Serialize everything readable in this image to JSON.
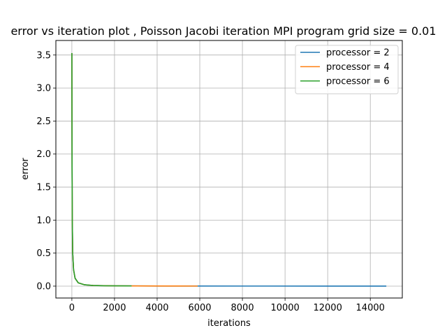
{
  "chart_data": {
    "type": "line",
    "title": "error vs iteration plot  , Poisson Jacobi iteration MPI program grid size = 0.01",
    "xlabel": "iterations",
    "ylabel": "error",
    "xlim": [
      -750,
      15500
    ],
    "ylim": [
      -0.18,
      3.72
    ],
    "xticks": [
      0,
      2000,
      4000,
      6000,
      8000,
      10000,
      12000,
      14000
    ],
    "xtick_labels": [
      "0",
      "2000",
      "4000",
      "6000",
      "8000",
      "10000",
      "12000",
      "14000"
    ],
    "yticks": [
      0.0,
      0.5,
      1.0,
      1.5,
      2.0,
      2.5,
      3.0,
      3.5
    ],
    "ytick_labels": [
      "0.0",
      "0.5",
      "1.0",
      "1.5",
      "2.0",
      "2.5",
      "3.0",
      "3.5"
    ],
    "grid": true,
    "legend_position": "top-right",
    "series": [
      {
        "name": "processor = 2",
        "color": "#1f77b4",
        "x": [
          0,
          5,
          10,
          20,
          40,
          80,
          150,
          300,
          600,
          1000,
          2000,
          4000,
          8000,
          12000,
          14750
        ],
        "y": [
          3.53,
          2.6,
          1.8,
          1.0,
          0.5,
          0.25,
          0.12,
          0.05,
          0.02,
          0.01,
          0.004,
          0.002,
          0.001,
          0.0005,
          0.0003
        ]
      },
      {
        "name": "processor = 4",
        "color": "#ff7f0e",
        "x": [
          0,
          5,
          10,
          20,
          40,
          80,
          150,
          300,
          600,
          1000,
          2000,
          3000,
          4500,
          5900
        ],
        "y": [
          3.53,
          2.6,
          1.8,
          1.0,
          0.5,
          0.25,
          0.12,
          0.05,
          0.02,
          0.01,
          0.004,
          0.003,
          0.002,
          0.001
        ]
      },
      {
        "name": "processor = 6",
        "color": "#2ca02c",
        "x": [
          0,
          5,
          10,
          20,
          40,
          80,
          150,
          300,
          600,
          1000,
          1500,
          2000,
          2800
        ],
        "y": [
          3.53,
          2.6,
          1.8,
          1.0,
          0.5,
          0.25,
          0.12,
          0.05,
          0.02,
          0.01,
          0.006,
          0.004,
          0.003
        ]
      }
    ]
  }
}
